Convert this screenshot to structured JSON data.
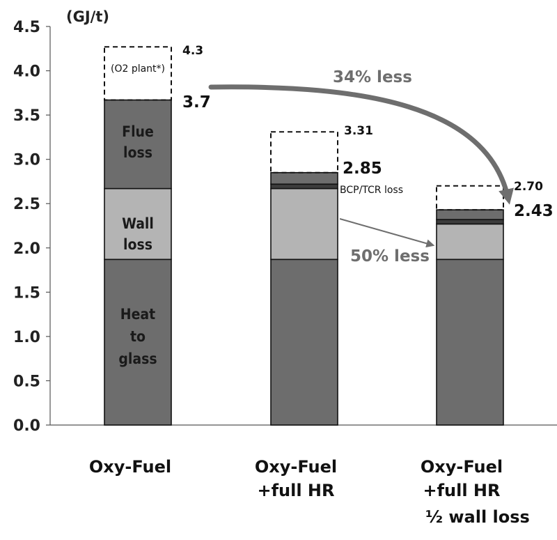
{
  "chart_data": {
    "type": "bar",
    "stacked": true,
    "y_unit": "(GJ/t)",
    "ylim": [
      0,
      4.5
    ],
    "y_ticks": [
      "0.0",
      "0.5",
      "1.0",
      "1.5",
      "2.0",
      "2.5",
      "3.0",
      "3.5",
      "4.0",
      "4.5"
    ],
    "categories": [
      [
        "Oxy-Fuel"
      ],
      [
        "Oxy-Fuel",
        "+full HR"
      ],
      [
        "Oxy-Fuel",
        "+full HR",
        "½ wall loss"
      ]
    ],
    "series": [
      {
        "name": "Heat to glass",
        "values": [
          1.87,
          1.87,
          1.87
        ],
        "color": "#6d6d6d"
      },
      {
        "name": "Wall loss",
        "values": [
          0.8,
          0.8,
          0.4
        ],
        "color": "#b4b4b4"
      },
      {
        "name": "BCP/TCR loss",
        "values": [
          0.0,
          0.05,
          0.05
        ],
        "color": "#3c3c3c"
      },
      {
        "name": "Flue loss",
        "values": [
          1.0,
          0.13,
          0.11
        ],
        "color": "#6d6d6d"
      },
      {
        "name": "O2 plant",
        "values": [
          0.6,
          0.46,
          0.27
        ],
        "color": "#ffffff",
        "dashed": true
      }
    ],
    "totals_without_o2": [
      "3.7",
      "2.85",
      "2.43"
    ],
    "totals_with_o2": [
      "4.3",
      "3.31",
      "2.70"
    ],
    "segment_labels": {
      "flue": "Flue loss",
      "wall": "Wall loss",
      "heat": "Heat to glass",
      "o2": "(O2 plant*)",
      "bcp": "BCP/TCR loss"
    },
    "annotations": {
      "less_total": "34% less",
      "less_wall": "50% less"
    },
    "grid": false
  }
}
